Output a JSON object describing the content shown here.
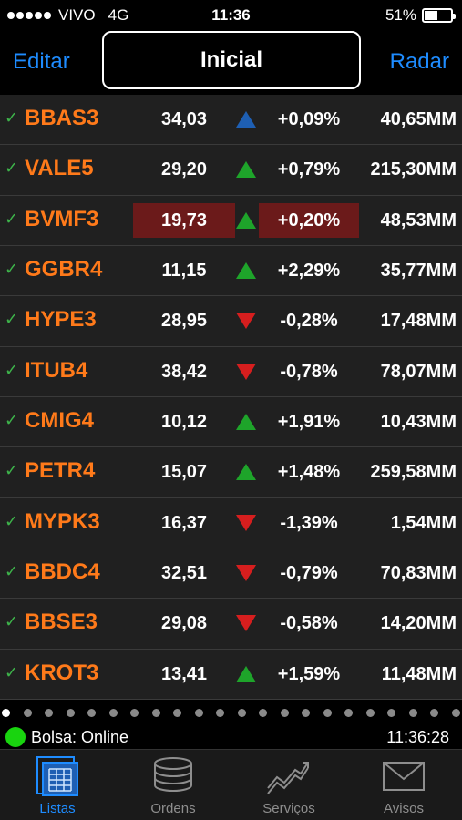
{
  "status": {
    "carrier": "VIVO",
    "network": "4G",
    "time": "11:36",
    "battery": "51%",
    "battery_level": 0.51
  },
  "nav": {
    "edit": "Editar",
    "title": "Inicial",
    "radar": "Radar"
  },
  "rows": [
    {
      "ticker": "BBAS3",
      "price": "34,03",
      "direction": "up",
      "arrow_color": "#1e5fb3",
      "change": "+0,09%",
      "volume": "40,65MM",
      "highlight": false
    },
    {
      "ticker": "VALE5",
      "price": "29,20",
      "direction": "up",
      "arrow_color": "#1ea42a",
      "change": "+0,79%",
      "volume": "215,30MM",
      "highlight": false
    },
    {
      "ticker": "BVMF3",
      "price": "19,73",
      "direction": "up",
      "arrow_color": "#1ea42a",
      "change": "+0,20%",
      "volume": "48,53MM",
      "highlight": true
    },
    {
      "ticker": "GGBR4",
      "price": "11,15",
      "direction": "up",
      "arrow_color": "#1ea42a",
      "change": "+2,29%",
      "volume": "35,77MM",
      "highlight": false
    },
    {
      "ticker": "HYPE3",
      "price": "28,95",
      "direction": "down",
      "arrow_color": "#d61e1e",
      "change": "-0,28%",
      "volume": "17,48MM",
      "highlight": false
    },
    {
      "ticker": "ITUB4",
      "price": "38,42",
      "direction": "down",
      "arrow_color": "#d61e1e",
      "change": "-0,78%",
      "volume": "78,07MM",
      "highlight": false
    },
    {
      "ticker": "CMIG4",
      "price": "10,12",
      "direction": "up",
      "arrow_color": "#1ea42a",
      "change": "+1,91%",
      "volume": "10,43MM",
      "highlight": false
    },
    {
      "ticker": "PETR4",
      "price": "15,07",
      "direction": "up",
      "arrow_color": "#1ea42a",
      "change": "+1,48%",
      "volume": "259,58MM",
      "highlight": false
    },
    {
      "ticker": "MYPK3",
      "price": "16,37",
      "direction": "down",
      "arrow_color": "#d61e1e",
      "change": "-1,39%",
      "volume": "1,54MM",
      "highlight": false
    },
    {
      "ticker": "BBDC4",
      "price": "32,51",
      "direction": "down",
      "arrow_color": "#d61e1e",
      "change": "-0,79%",
      "volume": "70,83MM",
      "highlight": false
    },
    {
      "ticker": "BBSE3",
      "price": "29,08",
      "direction": "down",
      "arrow_color": "#d61e1e",
      "change": "-0,58%",
      "volume": "14,20MM",
      "highlight": false
    },
    {
      "ticker": "KROT3",
      "price": "13,41",
      "direction": "up",
      "arrow_color": "#1ea42a",
      "change": "+1,59%",
      "volume": "11,48MM",
      "highlight": false
    }
  ],
  "page_dots": {
    "count": 22,
    "active": 0
  },
  "footer": {
    "status": "Bolsa: Online",
    "clock": "11:36:28"
  },
  "tabs": [
    {
      "label": "Listas",
      "icon": "grid-icon",
      "active": true
    },
    {
      "label": "Ordens",
      "icon": "database-icon",
      "active": false
    },
    {
      "label": "Serviços",
      "icon": "trend-chart-icon",
      "active": false
    },
    {
      "label": "Avisos",
      "icon": "envelope-icon",
      "active": false
    }
  ],
  "colors": {
    "accent": "#1e8cff",
    "ticker": "#ff7a1a",
    "up": "#1ea42a",
    "down": "#d61e1e",
    "online": "#19d40f"
  }
}
